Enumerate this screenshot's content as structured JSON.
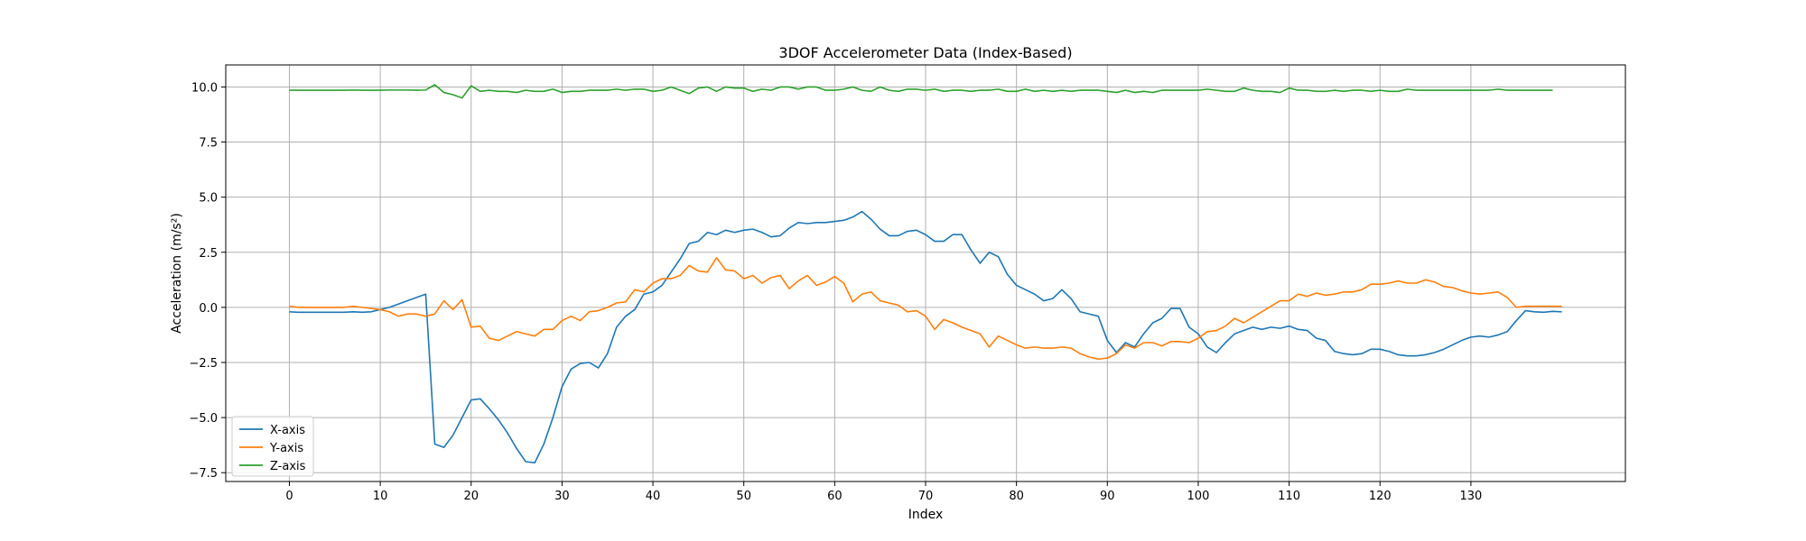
{
  "chart_data": {
    "type": "line",
    "title": "3DOF Accelerometer Data (Index-Based)",
    "xlabel": "Index",
    "ylabel": "Acceleration (m/s²)",
    "xlim": [
      -7,
      147
    ],
    "ylim": [
      -7.9,
      11.0
    ],
    "xticks": [
      0,
      10,
      20,
      30,
      40,
      50,
      60,
      70,
      80,
      90,
      100,
      110,
      120,
      130
    ],
    "yticks": [
      -7.5,
      -5.0,
      -2.5,
      0.0,
      2.5,
      5.0,
      7.5,
      10.0
    ],
    "xtick_labels": [
      "0",
      "10",
      "20",
      "30",
      "40",
      "50",
      "60",
      "70",
      "80",
      "90",
      "100",
      "110",
      "120",
      "130"
    ],
    "ytick_labels": [
      "−7.5",
      "−5.0",
      "−2.5",
      "0.0",
      "2.5",
      "5.0",
      "7.5",
      "10.0"
    ],
    "grid": true,
    "legend_position": "lower-left",
    "series": [
      {
        "name": "X-axis",
        "color": "#1f77b4",
        "values": [
          -0.2,
          -0.22,
          -0.22,
          -0.22,
          -0.22,
          -0.22,
          -0.22,
          -0.2,
          -0.22,
          -0.2,
          -0.1,
          0.0,
          0.15,
          0.3,
          0.45,
          0.6,
          -6.2,
          -6.35,
          -5.8,
          -5.0,
          -4.2,
          -4.15,
          -4.6,
          -5.1,
          -5.7,
          -6.4,
          -7.0,
          -7.05,
          -6.2,
          -5.0,
          -3.6,
          -2.8,
          -2.55,
          -2.5,
          -2.75,
          -2.1,
          -0.9,
          -0.4,
          -0.1,
          0.6,
          0.7,
          1.0,
          1.6,
          2.2,
          2.9,
          3.0,
          3.4,
          3.3,
          3.5,
          3.4,
          3.5,
          3.55,
          3.4,
          3.2,
          3.25,
          3.6,
          3.85,
          3.8,
          3.85,
          3.85,
          3.9,
          3.95,
          4.1,
          4.35,
          4.0,
          3.55,
          3.25,
          3.25,
          3.45,
          3.5,
          3.3,
          3.0,
          3.0,
          3.3,
          3.3,
          2.6,
          2.0,
          2.5,
          2.3,
          1.5,
          1.0,
          0.8,
          0.6,
          0.3,
          0.4,
          0.8,
          0.4,
          -0.2,
          -0.3,
          -0.4,
          -1.5,
          -2.05,
          -1.6,
          -1.8,
          -1.2,
          -0.7,
          -0.5,
          -0.05,
          -0.05,
          -0.9,
          -1.2,
          -1.8,
          -2.05,
          -1.6,
          -1.2,
          -1.05,
          -0.9,
          -1.0,
          -0.9,
          -0.95,
          -0.85,
          -1.0,
          -1.05,
          -1.4,
          -1.5,
          -2.0,
          -2.1,
          -2.15,
          -2.1,
          -1.9,
          -1.9,
          -2.0,
          -2.15,
          -2.2,
          -2.2,
          -2.15,
          -2.05,
          -1.9,
          -1.7,
          -1.5,
          -1.35,
          -1.3,
          -1.35,
          -1.25,
          -1.1,
          -0.6,
          -0.15,
          -0.2,
          -0.22,
          -0.18,
          -0.2
        ]
      },
      {
        "name": "Y-axis",
        "color": "#ff7f0e",
        "values": [
          0.05,
          0.0,
          0.0,
          0.0,
          0.0,
          0.0,
          0.0,
          0.05,
          0.0,
          -0.05,
          -0.1,
          -0.2,
          -0.4,
          -0.3,
          -0.3,
          -0.4,
          -0.3,
          0.3,
          -0.1,
          0.35,
          -0.9,
          -0.85,
          -1.4,
          -1.5,
          -1.3,
          -1.1,
          -1.2,
          -1.3,
          -1.0,
          -1.0,
          -0.6,
          -0.4,
          -0.6,
          -0.2,
          -0.15,
          0.0,
          0.2,
          0.25,
          0.8,
          0.7,
          1.1,
          1.3,
          1.3,
          1.45,
          1.9,
          1.65,
          1.6,
          2.25,
          1.7,
          1.65,
          1.3,
          1.45,
          1.1,
          1.35,
          1.45,
          0.85,
          1.2,
          1.45,
          1.0,
          1.15,
          1.4,
          1.1,
          0.25,
          0.6,
          0.7,
          0.3,
          0.2,
          0.1,
          -0.2,
          -0.15,
          -0.4,
          -1.0,
          -0.55,
          -0.7,
          -0.9,
          -1.05,
          -1.2,
          -1.8,
          -1.3,
          -1.5,
          -1.7,
          -1.85,
          -1.8,
          -1.85,
          -1.85,
          -1.8,
          -1.85,
          -2.1,
          -2.25,
          -2.35,
          -2.3,
          -2.1,
          -1.7,
          -1.85,
          -1.6,
          -1.6,
          -1.75,
          -1.55,
          -1.55,
          -1.6,
          -1.4,
          -1.1,
          -1.05,
          -0.85,
          -0.5,
          -0.7,
          -0.45,
          -0.2,
          0.05,
          0.3,
          0.3,
          0.6,
          0.5,
          0.65,
          0.55,
          0.6,
          0.7,
          0.7,
          0.8,
          1.05,
          1.05,
          1.1,
          1.2,
          1.1,
          1.1,
          1.25,
          1.15,
          0.95,
          0.9,
          0.75,
          0.65,
          0.6,
          0.65,
          0.7,
          0.45,
          0.0,
          0.05,
          0.05,
          0.05,
          0.05,
          0.05
        ]
      },
      {
        "name": "Z-axis",
        "color": "#2ca02c",
        "values": [
          9.85,
          9.85,
          9.85,
          9.85,
          9.85,
          9.85,
          9.85,
          9.86,
          9.85,
          9.85,
          9.85,
          9.86,
          9.86,
          9.86,
          9.85,
          9.86,
          10.1,
          9.75,
          9.65,
          9.5,
          10.05,
          9.8,
          9.85,
          9.8,
          9.8,
          9.75,
          9.85,
          9.8,
          9.8,
          9.9,
          9.75,
          9.8,
          9.8,
          9.85,
          9.85,
          9.85,
          9.9,
          9.85,
          9.9,
          9.9,
          9.8,
          9.85,
          10.0,
          9.85,
          9.7,
          9.95,
          10.0,
          9.8,
          10.0,
          9.95,
          9.95,
          9.8,
          9.9,
          9.85,
          10.0,
          10.0,
          9.9,
          10.0,
          10.0,
          9.85,
          9.85,
          9.9,
          10.0,
          9.85,
          9.8,
          10.0,
          9.85,
          9.8,
          9.9,
          9.9,
          9.85,
          9.9,
          9.8,
          9.85,
          9.85,
          9.8,
          9.85,
          9.85,
          9.9,
          9.8,
          9.8,
          9.9,
          9.8,
          9.85,
          9.8,
          9.85,
          9.8,
          9.85,
          9.85,
          9.85,
          9.8,
          9.75,
          9.85,
          9.75,
          9.8,
          9.75,
          9.85,
          9.85,
          9.85,
          9.85,
          9.85,
          9.9,
          9.85,
          9.8,
          9.8,
          9.95,
          9.85,
          9.8,
          9.8,
          9.75,
          9.95,
          9.85,
          9.85,
          9.8,
          9.8,
          9.85,
          9.8,
          9.85,
          9.85,
          9.8,
          9.85,
          9.8,
          9.8,
          9.9,
          9.85,
          9.85,
          9.85,
          9.85,
          9.85,
          9.85,
          9.85,
          9.85,
          9.85,
          9.9,
          9.85,
          9.85,
          9.85,
          9.85,
          9.85,
          9.85
        ]
      }
    ]
  }
}
